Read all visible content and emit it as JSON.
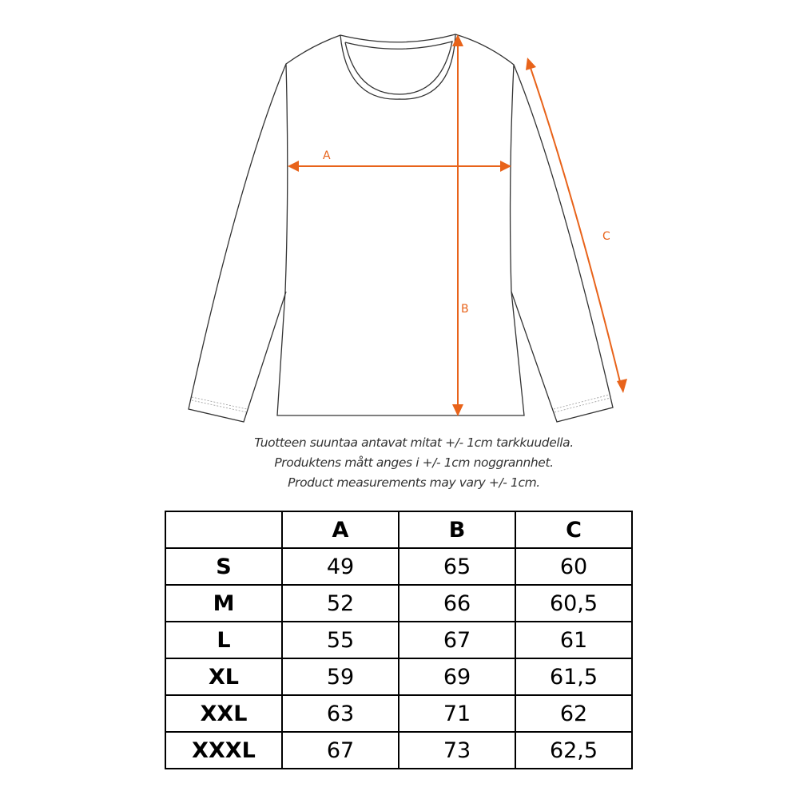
{
  "diagram": {
    "labels": {
      "a": "A",
      "b": "B",
      "c": "C"
    },
    "arrow_color": "#e8631a"
  },
  "captions": [
    "Tuotteen suuntaa antavat mitat +/- 1cm tarkkuudella.",
    "Produktens mått anges i +/- 1cm noggrannhet.",
    "Product measurements may vary +/- 1cm."
  ],
  "size_table": {
    "headers": [
      "",
      "A",
      "B",
      "C"
    ],
    "rows": [
      [
        "S",
        "49",
        "65",
        "60"
      ],
      [
        "M",
        "52",
        "66",
        "60,5"
      ],
      [
        "L",
        "55",
        "67",
        "61"
      ],
      [
        "XL",
        "59",
        "69",
        "61,5"
      ],
      [
        "XXL",
        "63",
        "71",
        "62"
      ],
      [
        "XXXL",
        "67",
        "73",
        "62,5"
      ]
    ]
  }
}
